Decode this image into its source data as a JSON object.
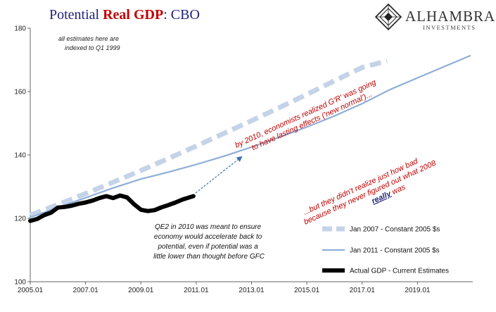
{
  "title": {
    "part1": "Potential ",
    "part2": "Real GDP",
    "part3": ":  CBO",
    "color_navy": "#1f1f7a",
    "color_red": "#c00000"
  },
  "logo": {
    "name": "ALHAMBRA",
    "sub": "INVESTMENTS",
    "icon": "alhambra-diamond-icon"
  },
  "annotations": {
    "indexed_line1": "all estimates here are",
    "indexed_line2": "indexed to Q1 1999",
    "red1_line1": "by 2010, economists realized G'R' was going",
    "red1_line2": "to have lasting effects ('new normal')...",
    "red2_line1": "...but they didn't realize just how bad",
    "red2_line2": "because they never figured out what 2008",
    "red2_really": "really",
    "red2_was": " was",
    "qe2_line1": "QE2 in 2010 was meant to ensure",
    "qe2_line2": "economy would accelerate back to",
    "qe2_line3": "potential, even if potential was a",
    "qe2_line4": "little lower than thought before  GFC"
  },
  "chart_data": {
    "type": "line",
    "title": "Potential Real GDP:  CBO",
    "xlim": [
      2005.0,
      2021.0
    ],
    "ylim": [
      100,
      180
    ],
    "x_ticks": [
      2005,
      2007,
      2009,
      2011,
      2013,
      2015,
      2017,
      2019
    ],
    "x_tick_labels": [
      "2005.01",
      "2007.01",
      "2009.01",
      "2011.01",
      "2013.01",
      "2015.01",
      "2017.01",
      "2019.01"
    ],
    "y_ticks": [
      100,
      120,
      140,
      160,
      180
    ],
    "y_tick_labels": [
      "100",
      "120",
      "140",
      "160",
      "180"
    ],
    "grid": false,
    "legend_position": "bottom-right",
    "series": [
      {
        "name": "Jan 2007 - Constant 2005 $s",
        "color": "#c5d3e8",
        "style": "dashed",
        "x": [
          2005.0,
          2006.0,
          2007.0,
          2008.0,
          2009.0,
          2010.0,
          2011.0,
          2012.0,
          2013.0,
          2014.0,
          2015.0,
          2016.0,
          2017.0,
          2017.9
        ],
        "y": [
          121.0,
          124.3,
          127.8,
          131.4,
          135.1,
          138.9,
          142.8,
          146.8,
          150.8,
          154.9,
          159.1,
          163.4,
          167.6,
          169.7
        ]
      },
      {
        "name": "Jan 2011 - Constant 2005 $s",
        "color": "#8eaed8",
        "style": "solid",
        "x": [
          2005.0,
          2006.0,
          2007.0,
          2008.0,
          2009.0,
          2010.0,
          2011.0,
          2012.0,
          2013.0,
          2014.0,
          2015.0,
          2016.0,
          2017.0,
          2018.0,
          2019.0,
          2020.0,
          2020.9
        ],
        "y": [
          120.3,
          123.4,
          126.5,
          129.6,
          132.4,
          134.6,
          137.0,
          139.6,
          142.5,
          145.6,
          148.8,
          152.3,
          156.2,
          160.6,
          164.3,
          168.0,
          171.3
        ]
      },
      {
        "name": "Actual GDP - Current Estimates",
        "color": "#000000",
        "style": "solid",
        "x": [
          2005.0,
          2005.25,
          2005.5,
          2005.75,
          2006.0,
          2006.25,
          2006.5,
          2006.75,
          2007.0,
          2007.25,
          2007.5,
          2007.75,
          2008.0,
          2008.25,
          2008.5,
          2008.75,
          2009.0,
          2009.25,
          2009.5,
          2009.75,
          2010.0,
          2010.25,
          2010.5,
          2010.75,
          2010.9
        ],
        "y": [
          119.2,
          119.8,
          121.0,
          121.8,
          123.4,
          123.6,
          124.0,
          124.6,
          125.0,
          125.6,
          126.4,
          127.0,
          126.4,
          127.2,
          126.6,
          124.5,
          122.7,
          122.3,
          122.6,
          123.5,
          124.2,
          125.0,
          125.9,
          126.6,
          127.0
        ]
      }
    ]
  }
}
